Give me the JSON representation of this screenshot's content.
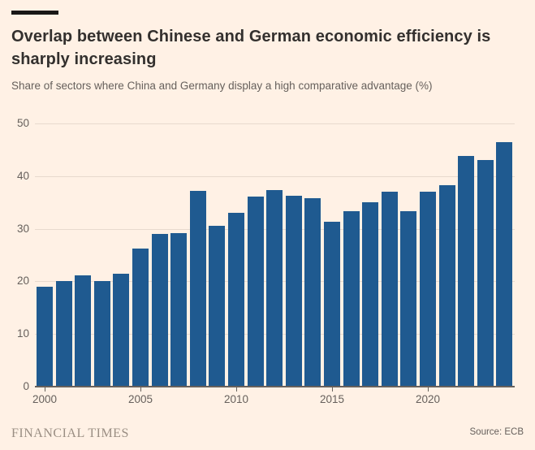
{
  "header": {
    "title": "Overlap between Chinese and German economic efficiency is sharply increasing",
    "subtitle": "Share of sectors where China and Germany display a high comparative advantage (%)"
  },
  "footer": {
    "brand": "FINANCIAL TIMES",
    "source": "Source: ECB"
  },
  "colors": {
    "background": "#fff1e5",
    "bar": "#1f5a90",
    "title_text": "#33302e",
    "muted_text": "#66605c",
    "gridline": "#e8dace",
    "baseline": "#66605c",
    "brand_text": "#9a8e83",
    "title_rule": "#1a1817"
  },
  "chart_data": {
    "type": "bar",
    "title": "Overlap between Chinese and German economic efficiency is sharply increasing",
    "subtitle": "Share of sectors where China and Germany display a high comparative advantage (%)",
    "xlabel": "",
    "ylabel": "",
    "x": [
      2000,
      2001,
      2002,
      2003,
      2004,
      2005,
      2006,
      2007,
      2008,
      2009,
      2010,
      2011,
      2012,
      2013,
      2014,
      2015,
      2016,
      2017,
      2018,
      2019,
      2020,
      2021,
      2022,
      2023,
      2024
    ],
    "values": [
      19,
      20,
      21.2,
      20,
      21.5,
      26.2,
      29,
      29.1,
      37.2,
      30.6,
      33,
      36.1,
      37.4,
      36.3,
      35.8,
      31.3,
      33.4,
      35.1,
      37.1,
      33.4,
      37,
      38.2,
      43.8,
      43.1,
      46.5
    ],
    "ylim": [
      0,
      50
    ],
    "yticks": [
      0,
      10,
      20,
      30,
      40,
      50
    ],
    "xticks": [
      2000,
      2005,
      2010,
      2015,
      2020
    ],
    "grid": "horizontal",
    "legend": "none",
    "bar_color": "#1f5a90",
    "source": "Source: ECB"
  }
}
